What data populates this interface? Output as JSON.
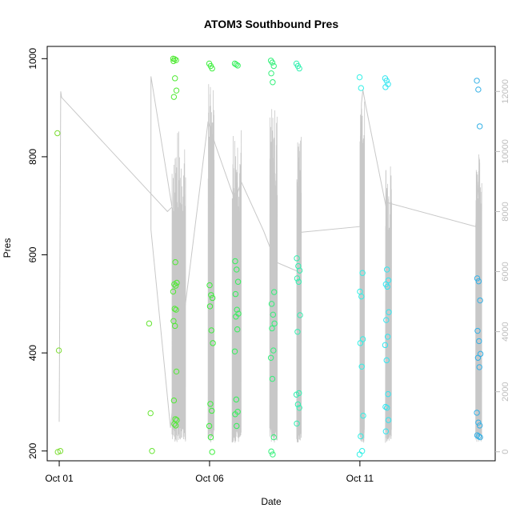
{
  "chart_data": {
    "type": "scatter",
    "title": "ATOM3 Southbound Pres",
    "xlabel": "Date",
    "ylabel": "Pres",
    "x_ticks": [
      {
        "label": "Oct 01",
        "value": 0
      },
      {
        "label": "Oct 06",
        "value": 5
      },
      {
        "label": "Oct 11",
        "value": 10
      }
    ],
    "xlim": [
      -0.4,
      14.5
    ],
    "ylim": [
      180,
      1025
    ],
    "y_ticks": [
      200,
      400,
      600,
      800,
      1000
    ],
    "y2lim": [
      -300,
      13500
    ],
    "y2_ticks": [
      0,
      2000,
      4000,
      6000,
      8000,
      10000,
      12000
    ],
    "y2_color": "#bdbdbd",
    "line_color": "#c8c8c8",
    "grid": false,
    "legend": "none",
    "point_groups": [
      {
        "t": 0.0,
        "color": "#7CDD33",
        "values": [
          848,
          405,
          200,
          198
        ]
      },
      {
        "t": 3.05,
        "color": "#66E533",
        "values": [
          460,
          277,
          200
        ]
      },
      {
        "t": 3.85,
        "color": "#4FEA33",
        "values": [
          1000,
          999,
          997,
          995,
          960,
          935,
          922,
          585,
          543,
          540,
          537,
          525,
          490,
          488,
          465,
          455,
          362,
          303,
          265,
          263,
          255,
          252
        ]
      },
      {
        "t": 5.05,
        "color": "#3CEF3C",
        "values": [
          990,
          985,
          980,
          538,
          518,
          512,
          495,
          446,
          420,
          296,
          282,
          251,
          228,
          198
        ]
      },
      {
        "t": 5.9,
        "color": "#33F05A",
        "values": [
          990,
          988,
          986,
          587,
          570,
          545,
          520,
          488,
          480,
          474,
          448,
          403,
          305,
          280,
          275,
          251
        ]
      },
      {
        "t": 7.1,
        "color": "#33F07A",
        "values": [
          996,
          992,
          985,
          970,
          952,
          524,
          500,
          478,
          460,
          450,
          405,
          390,
          347,
          228,
          199,
          193
        ]
      },
      {
        "t": 7.95,
        "color": "#33F0B0",
        "values": [
          990,
          985,
          980,
          593,
          577,
          568,
          552,
          545,
          477,
          443,
          318,
          315,
          295,
          288,
          256
        ]
      },
      {
        "t": 10.05,
        "color": "#33F0E6",
        "values": [
          962,
          940,
          563,
          525,
          515,
          428,
          420,
          372,
          272,
          230,
          200,
          193
        ]
      },
      {
        "t": 10.9,
        "color": "#33E6F0",
        "values": [
          960,
          955,
          948,
          942,
          570,
          548,
          540,
          535,
          483,
          467,
          433,
          416,
          385,
          316,
          290,
          288,
          263,
          240
        ]
      },
      {
        "t": 13.95,
        "color": "#33B0E6",
        "values": [
          955,
          937,
          862,
          552,
          546,
          507,
          445,
          424,
          398,
          390,
          371,
          278,
          258,
          252,
          232,
          230,
          228
        ]
      }
    ],
    "secondary_line": {
      "axis": "right",
      "path": [
        [
          0.0,
          1000
        ],
        [
          0.05,
          12000
        ],
        [
          0.08,
          11800
        ],
        [
          3.6,
          8000
        ],
        [
          3.75,
          8150
        ],
        [
          3.05,
          12500
        ],
        [
          3.05,
          7400
        ],
        [
          3.7,
          800
        ],
        [
          3.75,
          1300
        ],
        [
          4.95,
          11000
        ],
        [
          5.2,
          10200
        ],
        [
          5.85,
          8350
        ],
        [
          6.05,
          9000
        ],
        [
          6.8,
          7350
        ],
        [
          7.05,
          6700
        ],
        [
          7.25,
          6100
        ],
        [
          7.25,
          6300
        ],
        [
          7.95,
          6000
        ],
        [
          7.95,
          7300
        ],
        [
          10.0,
          7500
        ],
        [
          10.05,
          11600
        ],
        [
          10.1,
          12050
        ],
        [
          10.2,
          11500
        ],
        [
          10.9,
          8000
        ],
        [
          10.9,
          8300
        ],
        [
          13.85,
          7500
        ],
        [
          13.95,
          9000
        ]
      ],
      "spike_clusters": [
        {
          "t0": 3.75,
          "t1": 4.2,
          "max": 10800
        },
        {
          "t0": 4.95,
          "t1": 5.15,
          "max": 12400
        },
        {
          "t0": 5.75,
          "t1": 6.05,
          "max": 11000
        },
        {
          "t0": 7.0,
          "t1": 7.25,
          "max": 11500
        },
        {
          "t0": 7.9,
          "t1": 8.05,
          "max": 10600
        },
        {
          "t0": 10.0,
          "t1": 10.15,
          "max": 11800
        },
        {
          "t0": 10.85,
          "t1": 11.05,
          "max": 9800
        },
        {
          "t0": 13.85,
          "t1": 14.05,
          "max": 10000
        }
      ]
    }
  }
}
